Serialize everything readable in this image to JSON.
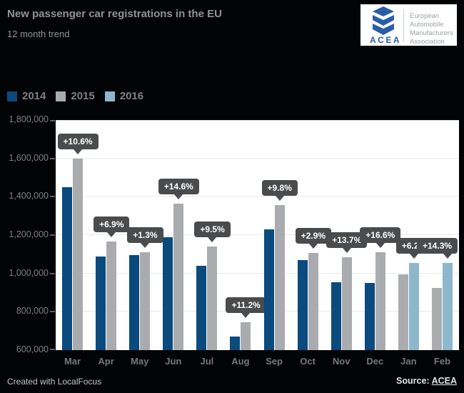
{
  "header": {
    "title": "New passenger car registrations in the EU",
    "subtitle": "12 month trend"
  },
  "logo": {
    "acronym": "ACEA",
    "org_lines": [
      "European",
      "Automobile",
      "Manufacturers",
      "Association"
    ]
  },
  "legend": {
    "items": [
      {
        "label": "2014",
        "color": "#0a4a7d"
      },
      {
        "label": "2015",
        "color": "#a9abae"
      },
      {
        "label": "2016",
        "color": "#8db7cd"
      }
    ]
  },
  "chart_data": {
    "type": "bar",
    "title": "New passenger car registrations in the EU",
    "subtitle": "12 month trend",
    "categories": [
      "Mar",
      "Apr",
      "May",
      "Jun",
      "Jul",
      "Aug",
      "Sep",
      "Oct",
      "Nov",
      "Dec",
      "Jan",
      "Feb"
    ],
    "series": [
      {
        "name": "2014",
        "color": "#0a4a7d",
        "values": [
          1450000,
          1090000,
          1095000,
          1190000,
          1040000,
          670000,
          1230000,
          1070000,
          955000,
          950000,
          null,
          null
        ]
      },
      {
        "name": "2015",
        "color": "#a9abae",
        "values": [
          1600000,
          1165000,
          1110000,
          1365000,
          1140000,
          745000,
          1355000,
          1105000,
          1085000,
          1110000,
          995000,
          925000
        ]
      },
      {
        "name": "2016",
        "color": "#8db7cd",
        "values": [
          null,
          null,
          null,
          null,
          null,
          null,
          null,
          null,
          null,
          null,
          1055000,
          1055000
        ]
      }
    ],
    "bar_labels": [
      "+10.6%",
      "+6.9%",
      "+1.3%",
      "+14.6%",
      "+9.5%",
      "+11.2%",
      "+9.8%",
      "+2.9%",
      "+13.7%",
      "+16.6%",
      "+6.2%",
      "+14.3%"
    ],
    "ylabel": "",
    "xlabel": "",
    "ylim": [
      600000,
      1800000
    ],
    "ytick_step": 200000,
    "grid": true,
    "legend_position": "top-left",
    "colors": {
      "label_bg": "#4a4b4c",
      "grid": "#e8eaec",
      "plot_bg": "#ffffff",
      "page_bg": "#020304"
    }
  },
  "footer": {
    "credit": "Created with LocalFocus",
    "source_label": "Source:",
    "source_link": "ACEA"
  }
}
